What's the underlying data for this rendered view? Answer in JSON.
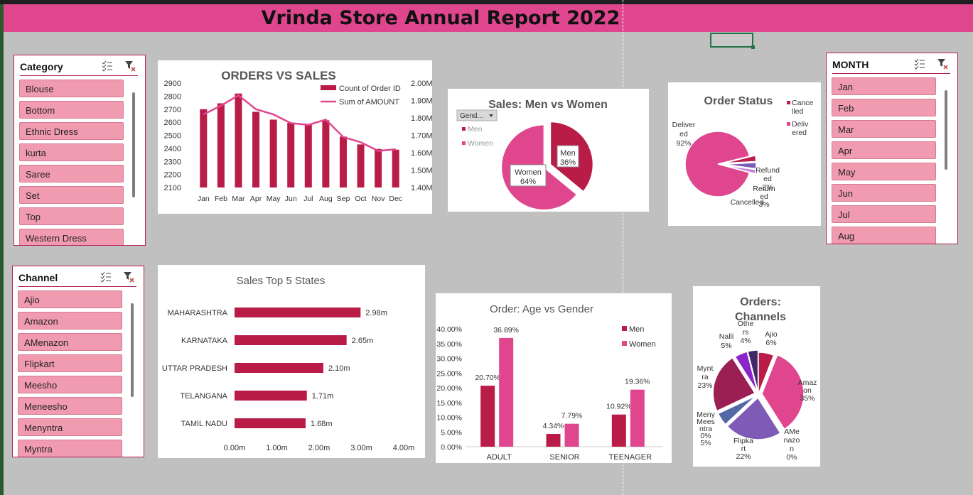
{
  "banner": {
    "title": "Vrinda Store Annual Report 2022",
    "color": "#e0468e"
  },
  "slicers": {
    "category": {
      "title": "Category",
      "items": [
        "Blouse",
        "Bottom",
        "Ethnic Dress",
        "kurta",
        "Saree",
        "Set",
        "Top",
        "Western Dress"
      ]
    },
    "channel": {
      "title": "Channel",
      "items": [
        "Ajio",
        "Amazon",
        "AMenazon",
        "Flipkart",
        "Meesho",
        "Meneesho",
        "Menyntra",
        "Myntra"
      ]
    },
    "month": {
      "title": "MONTH",
      "items": [
        "Jan",
        "Feb",
        "Mar",
        "Apr",
        "May",
        "Jun",
        "Jul",
        "Aug"
      ]
    }
  },
  "icons": {
    "multiselect": "multi-select-icon",
    "clear_filter": "clear-filter-icon",
    "dropdown": "dropdown-arrow-icon"
  },
  "colors": {
    "crimson": "#b91c47",
    "pink": "#e0468e",
    "slicer_item": "#f19bb0",
    "purple": "#7d5bb7",
    "violet": "#8b25c9",
    "plum": "#9b1f55",
    "steel": "#5468a8",
    "dark": "#3f2a66"
  },
  "chart_data": [
    {
      "id": "orders-vs-sales",
      "type": "bar",
      "title": "ORDERS VS SALES",
      "categories": [
        "Jan",
        "Feb",
        "Mar",
        "Apr",
        "May",
        "Jun",
        "Jul",
        "Aug",
        "Sep",
        "Oct",
        "Nov",
        "Dec"
      ],
      "series": [
        {
          "name": "Count of Order ID",
          "type": "bar",
          "axis": "left",
          "values": [
            2700,
            2745,
            2820,
            2680,
            2620,
            2595,
            2580,
            2615,
            2490,
            2430,
            2395,
            2390
          ]
        },
        {
          "name": "Sum of AMOUNT",
          "type": "line",
          "axis": "right",
          "values": [
            1.82,
            1.87,
            1.93,
            1.85,
            1.82,
            1.77,
            1.76,
            1.79,
            1.69,
            1.66,
            1.61,
            1.62
          ]
        }
      ],
      "ylim": [
        2100,
        2900
      ],
      "yticks": [
        "2900",
        "2800",
        "2700",
        "2600",
        "2500",
        "2400",
        "2300",
        "2200",
        "2100"
      ],
      "y2lim": [
        1.4,
        2.0
      ],
      "y2ticks": [
        "2.00M",
        "1.90M",
        "1.80M",
        "1.70M",
        "1.60M",
        "1.50M",
        "1.40M"
      ],
      "legend": "top-right"
    },
    {
      "id": "sales-men-vs-women",
      "type": "pie",
      "title": "Sales: Men vs Women",
      "filter_button": "Gend...",
      "legend_entries": [
        "Men",
        "Women"
      ],
      "slices": [
        {
          "name": "Men",
          "value": 36,
          "label": "Men",
          "pct": "36%"
        },
        {
          "name": "Women",
          "value": 64,
          "label": "Women",
          "pct": "64%"
        }
      ]
    },
    {
      "id": "order-status",
      "type": "pie",
      "title": "Order Status",
      "legend_entries": [
        "Cance\nlled",
        "Deliv\nered"
      ],
      "slices": [
        {
          "name": "Delivered",
          "value": 92
        },
        {
          "name": "Cancelled",
          "value": 3
        },
        {
          "name": "Returned",
          "value": 3
        },
        {
          "name": "Refunded",
          "value": 2
        }
      ],
      "labels": [
        {
          "lines": [
            "Deliver",
            "ed",
            "92%"
          ]
        },
        {
          "lines": [
            "Refund",
            "ed",
            "2%"
          ]
        },
        {
          "lines": [
            "Return",
            "ed",
            "3%"
          ]
        },
        {
          "lines": [
            "Cancelled"
          ]
        }
      ]
    },
    {
      "id": "sales-top-5-states",
      "type": "bar",
      "orientation": "horizontal",
      "title": "Sales Top 5 States",
      "categories": [
        "MAHARASHTRA",
        "KARNATAKA",
        "UTTAR PRADESH",
        "TELANGANA",
        "TAMIL NADU"
      ],
      "values": [
        2.98,
        2.65,
        2.1,
        1.71,
        1.68
      ],
      "value_labels": [
        "2.98m",
        "2.65m",
        "2.10m",
        "1.71m",
        "1.68m"
      ],
      "xlim": [
        0,
        4
      ],
      "xticks": [
        "0.00m",
        "1.00m",
        "2.00m",
        "3.00m",
        "4.00m"
      ]
    },
    {
      "id": "order-age-vs-gender",
      "type": "bar",
      "title": "Order: Age vs Gender",
      "categories": [
        "ADULT",
        "SENIOR",
        "TEENAGER"
      ],
      "series": [
        {
          "name": "Men",
          "values": [
            20.7,
            4.34,
            10.92
          ],
          "labels": [
            "20.70%",
            "4.34%",
            "10.92%"
          ]
        },
        {
          "name": "Women",
          "values": [
            36.89,
            7.79,
            19.36
          ],
          "labels": [
            "36.89%",
            "7.79%",
            "19.36%"
          ]
        }
      ],
      "ylim": [
        0,
        40
      ],
      "yticks": [
        "40.00%",
        "35.00%",
        "30.00%",
        "25.00%",
        "20.00%",
        "15.00%",
        "10.00%",
        "5.00%",
        "0.00%"
      ],
      "legend": "top-right"
    },
    {
      "id": "orders-channels",
      "type": "pie",
      "title_lines": [
        "Orders:",
        "Channels"
      ],
      "slices": [
        {
          "name": "Ajio",
          "value": 6
        },
        {
          "name": "Amazon",
          "value": 35
        },
        {
          "name": "AMenazon",
          "value": 0
        },
        {
          "name": "Flipkart",
          "value": 22
        },
        {
          "name": "Meesho",
          "value": 5
        },
        {
          "name": "Myntra",
          "value": 23
        },
        {
          "name": "Nalli",
          "value": 5
        },
        {
          "name": "Others",
          "value": 4
        }
      ],
      "labels": [
        {
          "lines": [
            "Ajio",
            "6%"
          ]
        },
        {
          "lines": [
            "Amaz",
            "on",
            "35%"
          ]
        },
        {
          "lines": [
            "AMe",
            "nazo",
            "n",
            "0%"
          ]
        },
        {
          "lines": [
            "Flipka",
            "rt",
            "22%"
          ]
        },
        {
          "lines": [
            "Meny",
            "Mees",
            "ntra",
            "0%",
            "5%"
          ]
        },
        {
          "lines": [
            "Mynt",
            "ra",
            "23%"
          ]
        },
        {
          "lines": [
            "Nalli",
            "5%"
          ]
        },
        {
          "lines": [
            "Othe",
            "rs",
            "4%"
          ]
        }
      ]
    }
  ]
}
